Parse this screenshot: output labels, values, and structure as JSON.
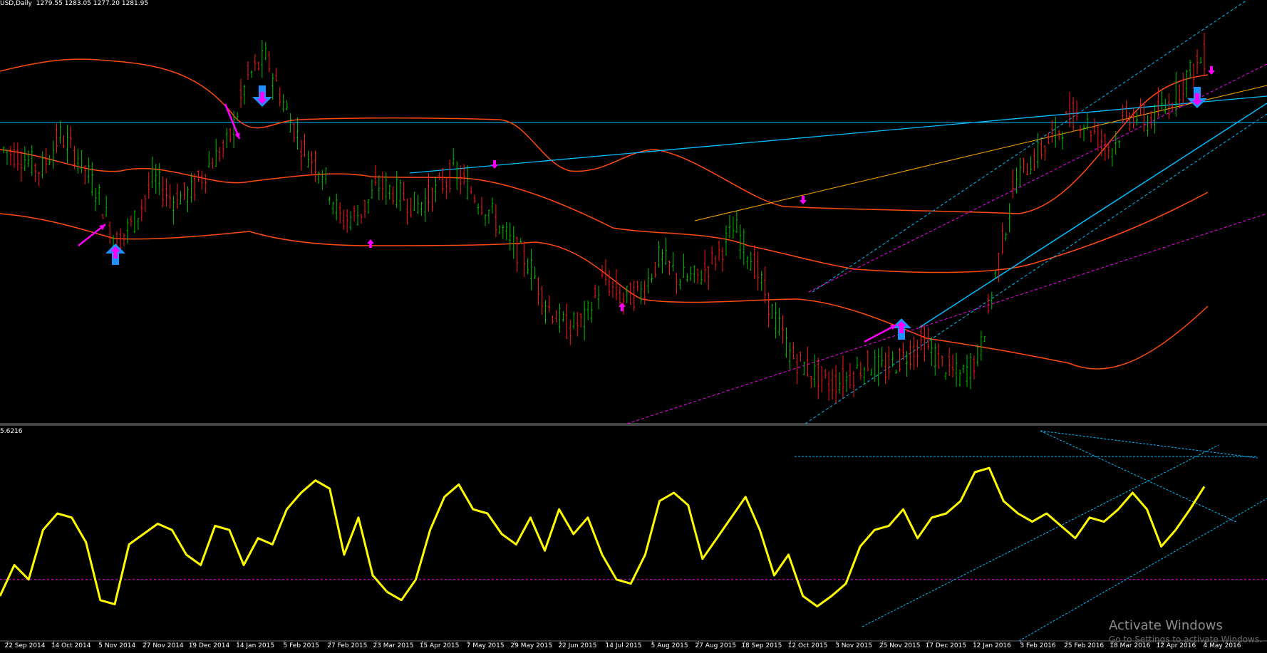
{
  "header": {
    "symbol": "USD,Daily",
    "ohlc": "1279.55 1283.05 1277.20 1281.95"
  },
  "oscillator": {
    "label": "5.6216"
  },
  "watermark": {
    "title": "Activate Windows",
    "subtitle": "Go to Settings to activate Windows."
  },
  "colors": {
    "background": "#000000",
    "bull_bar": "#00c000",
    "bear_bar": "#ff1a1a",
    "bands": "#ff4a10",
    "oscillator": "#ffff00",
    "trend_blue": "#00bfff",
    "trend_magenta": "#ff00ff",
    "trend_orange": "#ffa500",
    "arrow_blue": "#1e90ff"
  },
  "chart_data": [
    {
      "type": "candlestick",
      "title": "USD,Daily",
      "x_labels": [
        "22 Sep 2014",
        "14 Oct 2014",
        "5 Nov 2014",
        "27 Nov 2014",
        "19 Dec 2014",
        "14 Jan 2015",
        "5 Feb 2015",
        "27 Feb 2015",
        "23 Mar 2015",
        "15 Apr 2015",
        "7 May 2015",
        "29 May 2015",
        "22 Jun 2015",
        "14 Jul 2015",
        "5 Aug 2015",
        "27 Aug 2015",
        "18 Sep 2015",
        "12 Oct 2015",
        "3 Nov 2015",
        "25 Nov 2015",
        "17 Dec 2015",
        "12 Jan 2016",
        "3 Feb 2016",
        "25 Feb 2016",
        "18 Mar 2016",
        "12 Apr 2016",
        "4 May 2016"
      ],
      "close_path": [
        1230,
        1225,
        1215,
        1240,
        1225,
        1200,
        1165,
        1180,
        1210,
        1195,
        1200,
        1220,
        1235,
        1280,
        1295,
        1260,
        1230,
        1215,
        1180,
        1185,
        1205,
        1200,
        1190,
        1200,
        1215,
        1200,
        1185,
        1165,
        1150,
        1120,
        1105,
        1110,
        1140,
        1125,
        1130,
        1155,
        1140,
        1140,
        1155,
        1175,
        1150,
        1115,
        1085,
        1075,
        1065,
        1070,
        1080,
        1075,
        1085,
        1095,
        1080,
        1070,
        1085,
        1150,
        1210,
        1225,
        1240,
        1255,
        1245,
        1230,
        1255,
        1250,
        1260,
        1280,
        1295
      ],
      "last_ohlc": {
        "open": 1279.55,
        "high": 1283.05,
        "low": 1277.2,
        "close": 1281.95
      },
      "indicators": [
        "bollinger bands",
        "trend lines",
        "signal arrows"
      ]
    },
    {
      "type": "line",
      "title": "5.6216",
      "values": [
        20,
        35,
        28,
        52,
        60,
        58,
        46,
        18,
        16,
        45,
        50,
        55,
        52,
        40,
        35,
        54,
        52,
        35,
        48,
        45,
        62,
        70,
        76,
        72,
        40,
        58,
        30,
        22,
        18,
        28,
        52,
        68,
        74,
        62,
        60,
        50,
        45,
        58,
        42,
        62,
        50,
        58,
        40,
        28,
        26,
        40,
        66,
        70,
        64,
        38,
        48,
        58,
        68,
        52,
        30,
        40,
        20,
        15,
        20,
        26,
        44,
        52,
        54,
        62,
        48,
        58,
        60,
        66,
        80,
        82,
        66,
        60,
        56,
        60,
        54,
        48,
        58,
        56,
        62,
        70,
        62,
        44,
        52,
        62,
        73
      ]
    }
  ]
}
